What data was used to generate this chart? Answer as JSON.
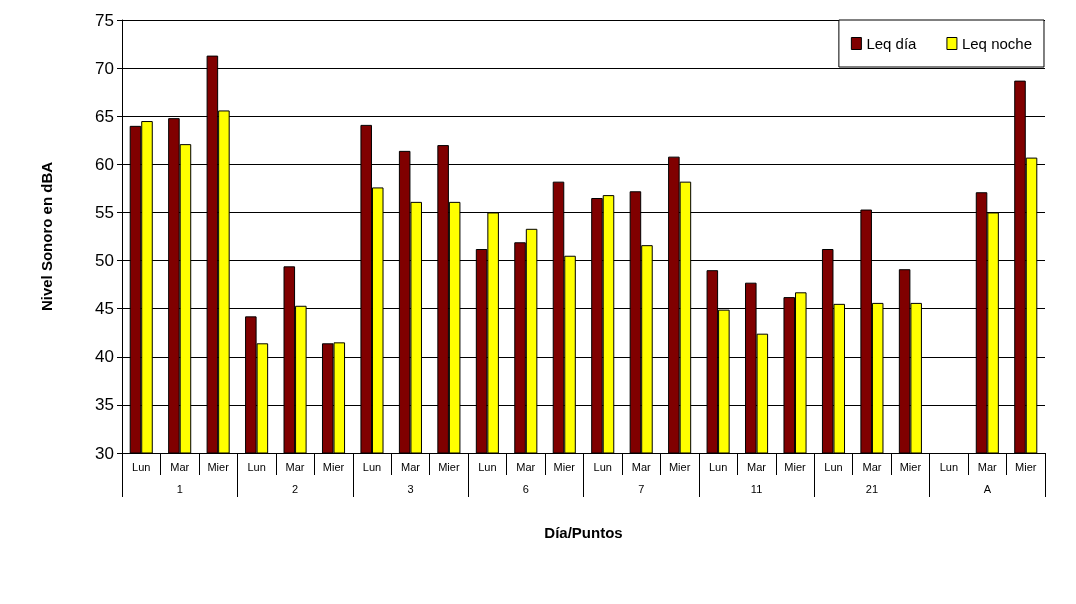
{
  "chart_data": {
    "type": "bar",
    "xlabel": "Día/Puntos",
    "ylabel": "Nivel Sonoro en dBA",
    "categories": [
      "Lun",
      "Mar",
      "Mier",
      "Lun",
      "Mar",
      "Mier",
      "Lun",
      "Mar",
      "Mier",
      "Lun",
      "Mar",
      "Mier",
      "Lun",
      "Mar",
      "Mier",
      "Lun",
      "Mar",
      "Mier",
      "Lun",
      "Mar",
      "Mier",
      "Lun",
      "Mar",
      "Mier"
    ],
    "annotations": [
      "1",
      "2",
      "3",
      "6",
      "7",
      "11",
      "21",
      "A"
    ],
    "series": [
      {
        "name": "Leq día",
        "color": "#800000",
        "values": [
          64.0,
          64.8,
          71.3,
          44.2,
          49.4,
          41.4,
          64.1,
          61.4,
          62.0,
          51.2,
          51.9,
          58.2,
          56.5,
          57.2,
          60.8,
          49.0,
          47.7,
          46.2,
          51.2,
          55.3,
          49.1,
          null,
          57.1,
          68.7
        ]
      },
      {
        "name": "Leq noche",
        "color": "#ffff00",
        "values": [
          64.5,
          62.1,
          65.6,
          41.4,
          45.3,
          41.5,
          57.6,
          56.1,
          56.1,
          55.0,
          53.3,
          50.5,
          56.8,
          51.6,
          58.2,
          44.9,
          42.4,
          46.7,
          45.5,
          45.6,
          45.6,
          null,
          55.0,
          60.7
        ]
      }
    ],
    "ylim": [
      30,
      75
    ],
    "yticks": [
      30,
      35,
      40,
      45,
      50,
      55,
      60,
      65,
      70,
      75
    ],
    "grid": "y",
    "legend": "top right"
  }
}
